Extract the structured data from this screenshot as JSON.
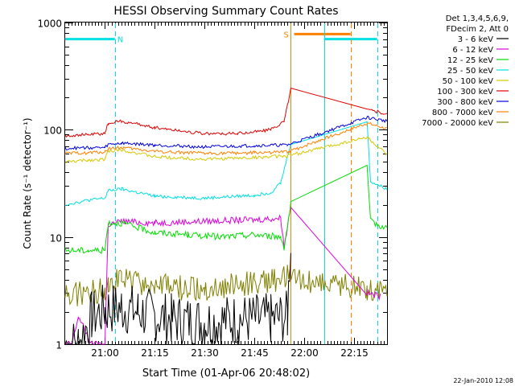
{
  "chart_data": {
    "type": "line",
    "title": "HESSI Observing Summary Count Rates",
    "xlabel": "Start Time (01-Apr-06 20:48:02)",
    "ylabel": "Count Rate (s⁻¹ detector⁻¹)",
    "y_scale": "log",
    "ylim": [
      1,
      1000
    ],
    "xlim": [
      "20:48:02",
      "22:25:00"
    ],
    "x_ticks": [
      "21:00",
      "21:15",
      "21:30",
      "21:45",
      "22:00",
      "22:15"
    ],
    "y_ticks": [
      "1",
      "10",
      "100",
      "1000"
    ],
    "legend_position": "right",
    "legend_header": [
      "Det 1,3,4,5,6,9,",
      "FDecim 2, Att 0"
    ],
    "timestamp": "22-Jan-2010 12:08",
    "series": [
      {
        "name": "3 - 6 keV",
        "color": "#000000",
        "points": [
          [
            "20:48",
            1
          ],
          [
            "20:52",
            1
          ],
          [
            "20:56",
            1.8
          ],
          [
            "21:00",
            2.1
          ],
          [
            "21:05",
            2.2
          ],
          [
            "21:10",
            2.0
          ],
          [
            "21:20",
            1.7
          ],
          [
            "21:30",
            1.6
          ],
          [
            "21:40",
            1.7
          ],
          [
            "21:50",
            1.7
          ],
          [
            "21:55",
            1.8
          ],
          [
            "21:56",
            10
          ]
        ]
      },
      {
        "name": "6 - 12 keV",
        "color": "#e000e0",
        "points": [
          [
            "20:48",
            1
          ],
          [
            "20:50",
            1
          ],
          [
            "20:52",
            1.8
          ],
          [
            "20:56",
            1
          ],
          [
            "21:00",
            1
          ],
          [
            "21:01",
            13
          ],
          [
            "21:05",
            14
          ],
          [
            "21:15",
            13.5
          ],
          [
            "21:30",
            14
          ],
          [
            "21:45",
            14.5
          ],
          [
            "21:53",
            15
          ],
          [
            "21:54",
            8
          ],
          [
            "21:56",
            20
          ],
          [
            "22:19",
            3
          ],
          [
            "22:23",
            2.8
          ]
        ]
      },
      {
        "name": "12 - 25 keV",
        "color": "#00e000",
        "points": [
          [
            "20:48",
            7.5
          ],
          [
            "20:55",
            7.5
          ],
          [
            "21:00",
            7.5
          ],
          [
            "21:01",
            13.5
          ],
          [
            "21:05",
            13.5
          ],
          [
            "21:15",
            11
          ],
          [
            "21:25",
            10.5
          ],
          [
            "21:35",
            10
          ],
          [
            "21:45",
            10.5
          ],
          [
            "21:53",
            10
          ],
          [
            "21:54",
            8
          ],
          [
            "21:56",
            20
          ],
          [
            "22:19",
            45
          ],
          [
            "22:20",
            14
          ],
          [
            "22:25",
            12
          ]
        ]
      },
      {
        "name": "25 - 50 keV",
        "color": "#00e0e0",
        "points": [
          [
            "20:48",
            20
          ],
          [
            "20:55",
            22
          ],
          [
            "21:00",
            23
          ],
          [
            "21:01",
            27
          ],
          [
            "21:05",
            28
          ],
          [
            "21:15",
            24
          ],
          [
            "21:30",
            23
          ],
          [
            "21:45",
            24.5
          ],
          [
            "21:50",
            26
          ],
          [
            "21:53",
            32
          ],
          [
            "21:56",
            75
          ],
          [
            "22:19",
            120
          ],
          [
            "22:20",
            33
          ],
          [
            "22:25",
            28
          ]
        ]
      },
      {
        "name": "50 - 100 keV",
        "color": "#d8c800",
        "points": [
          [
            "20:48",
            50
          ],
          [
            "20:55",
            52
          ],
          [
            "21:00",
            53
          ],
          [
            "21:01",
            63
          ],
          [
            "21:05",
            65
          ],
          [
            "21:15",
            56
          ],
          [
            "21:30",
            53
          ],
          [
            "21:45",
            55
          ],
          [
            "21:55",
            57
          ],
          [
            "22:19",
            85
          ],
          [
            "22:25",
            58
          ]
        ]
      },
      {
        "name": "100 - 300 keV",
        "color": "#e00000",
        "points": [
          [
            "20:48",
            88
          ],
          [
            "20:55",
            90
          ],
          [
            "21:00",
            92
          ],
          [
            "21:01",
            115
          ],
          [
            "21:05",
            120
          ],
          [
            "21:15",
            105
          ],
          [
            "21:30",
            92
          ],
          [
            "21:40",
            92
          ],
          [
            "21:50",
            100
          ],
          [
            "21:54",
            120
          ],
          [
            "21:56",
            240
          ],
          [
            "22:19",
            155
          ],
          [
            "22:25",
            140
          ]
        ]
      },
      {
        "name": "300 - 800 keV",
        "color": "#0000e0",
        "points": [
          [
            "20:48",
            67
          ],
          [
            "20:55",
            68
          ],
          [
            "21:00",
            68
          ],
          [
            "21:01",
            73
          ],
          [
            "21:05",
            75
          ],
          [
            "21:15",
            72
          ],
          [
            "21:30",
            69
          ],
          [
            "21:45",
            71
          ],
          [
            "21:55",
            72
          ],
          [
            "22:19",
            130
          ],
          [
            "22:25",
            120
          ]
        ]
      },
      {
        "name": "800 - 7000 keV",
        "color": "#ff8000",
        "points": [
          [
            "20:48",
            60
          ],
          [
            "20:55",
            61
          ],
          [
            "21:00",
            62
          ],
          [
            "21:01",
            67
          ],
          [
            "21:05",
            68
          ],
          [
            "21:15",
            63
          ],
          [
            "21:30",
            60
          ],
          [
            "21:45",
            61
          ],
          [
            "21:55",
            62
          ],
          [
            "22:19",
            115
          ],
          [
            "22:25",
            102
          ]
        ]
      },
      {
        "name": "7000 - 20000 keV",
        "color": "#808000",
        "points": [
          [
            "20:48",
            2.9
          ],
          [
            "20:55",
            3.0
          ],
          [
            "21:00",
            3.3
          ],
          [
            "21:01",
            4.0
          ],
          [
            "21:05",
            4.0
          ],
          [
            "21:15",
            3.5
          ],
          [
            "21:30",
            3.2
          ],
          [
            "21:45",
            3.8
          ],
          [
            "21:55",
            4.2
          ],
          [
            "22:19",
            3.3
          ],
          [
            "22:25",
            3.3
          ]
        ]
      }
    ],
    "annotations": {
      "night_band": {
        "label": "N",
        "color": "#00e0e0",
        "start": "20:48",
        "end": "21:03",
        "level": 700
      },
      "saa_band": {
        "label": "S",
        "color": "#ff8000",
        "start": "21:57",
        "end": "22:14",
        "level": 780
      },
      "second_night_band": {
        "color": "#00e0e0",
        "start": "22:06",
        "end": "22:22",
        "level": 700
      },
      "solid_markers": [
        {
          "time": "21:56",
          "color": "#ff8000"
        },
        {
          "time": "22:06",
          "color": "#00e0e0"
        }
      ],
      "dashed_markers": [
        {
          "time": "21:03",
          "color": "#00e0e0"
        },
        {
          "time": "22:14",
          "color": "#ff8000"
        },
        {
          "time": "22:22",
          "color": "#00e0e0"
        }
      ]
    }
  }
}
